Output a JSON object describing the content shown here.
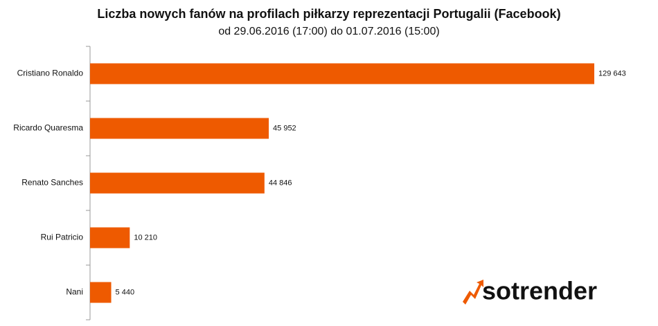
{
  "chart_data": {
    "type": "bar",
    "orientation": "horizontal",
    "title": "Liczba nowych fanów na profilach piłkarzy reprezentacji Portugalii (Facebook)",
    "subtitle": "od 29.06.2016  (17:00)  do 01.07.2016  (15:00)",
    "categories": [
      "Cristiano Ronaldo",
      "Ricardo Quaresma",
      "Renato Sanches",
      "Rui Patricio",
      "Nani"
    ],
    "values": [
      129643,
      45952,
      44846,
      10210,
      5440
    ],
    "value_labels": [
      "129 643",
      "45 952",
      "44 846",
      "10 210",
      "5 440"
    ],
    "color": "#ee5a00"
  },
  "logo": "sotrender"
}
